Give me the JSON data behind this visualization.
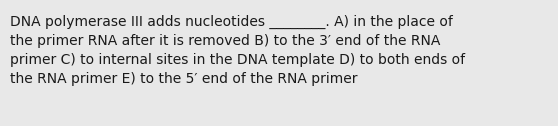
{
  "text": "DNA polymerase III adds nucleotides ________. A) in the place of\nthe primer RNA after it is removed B) to the 3′ end of the RNA\nprimer C) to internal sites in the DNA template D) to both ends of\nthe RNA primer E) to the 5′ end of the RNA primer",
  "background_color": "#e8e8e8",
  "text_color": "#1a1a1a",
  "font_size": 10.0,
  "fig_width": 5.58,
  "fig_height": 1.26,
  "dpi": 100
}
